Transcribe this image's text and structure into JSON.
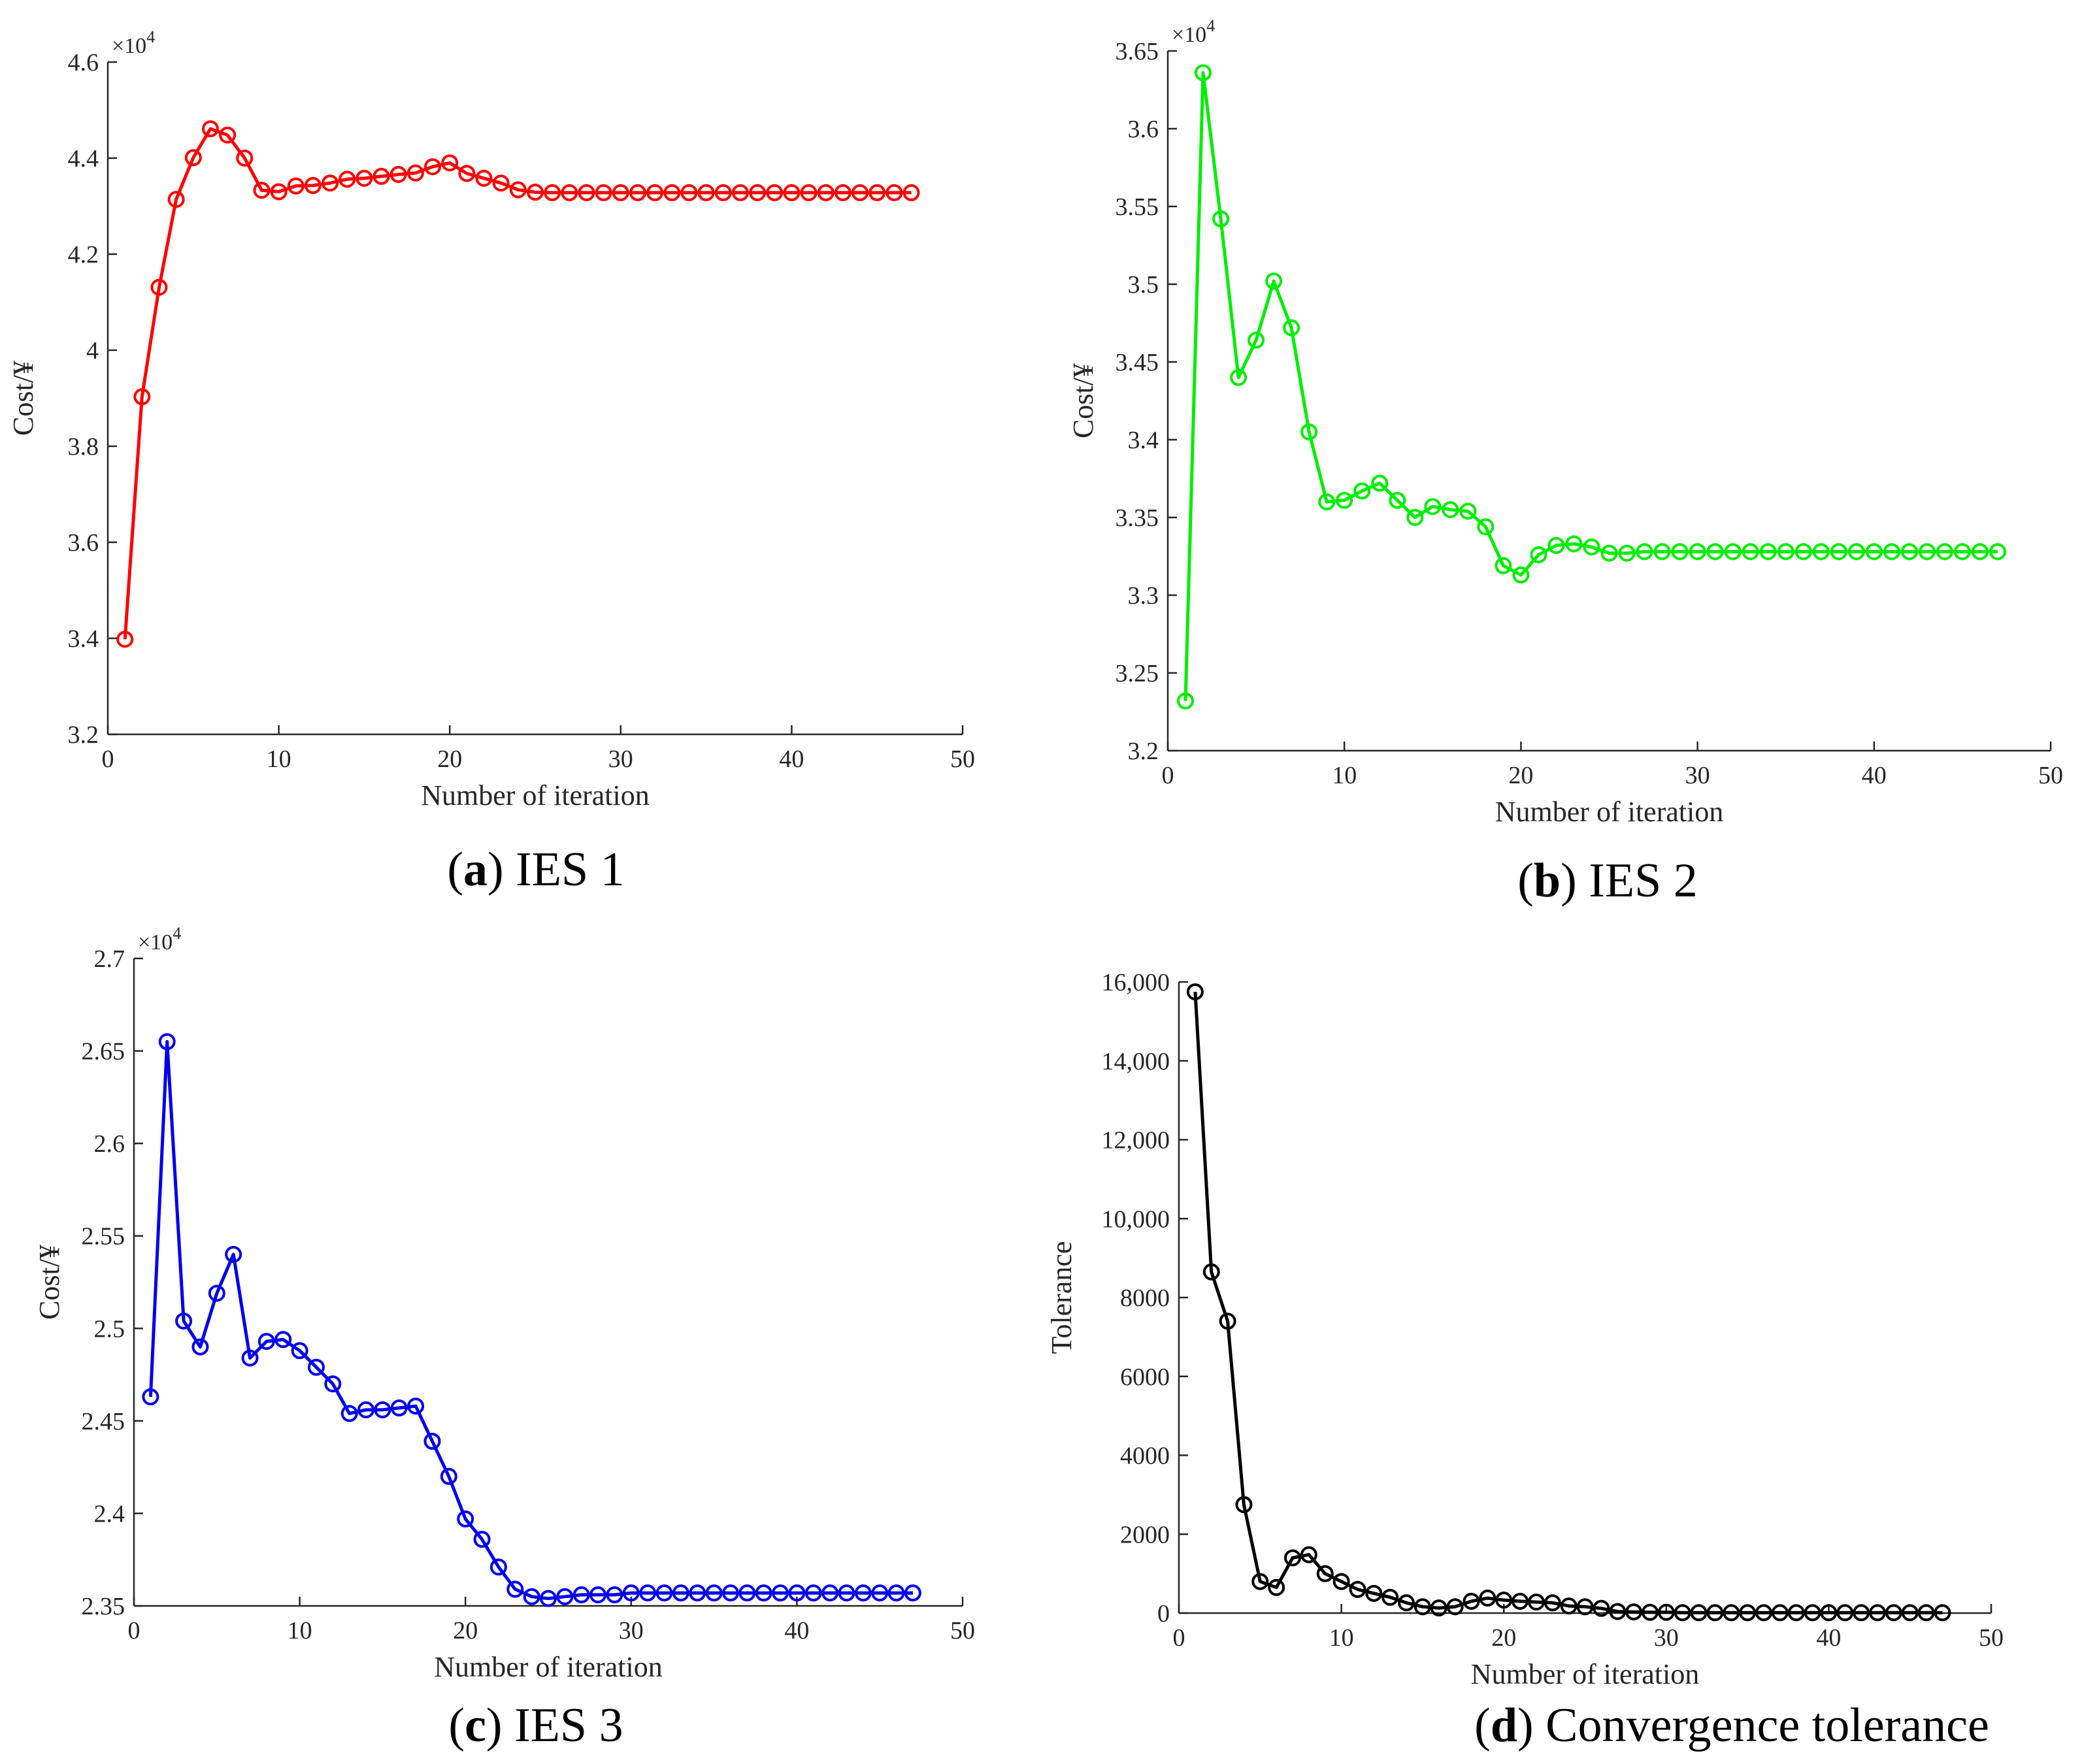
{
  "chart_data": [
    {
      "type": "line",
      "id": "a",
      "caption_letter": "a",
      "caption_text": "IES 1",
      "xlabel": "Number of iteration",
      "ylabel": "Cost/¥",
      "xlim": [
        0,
        50
      ],
      "ylim": [
        32000,
        46000
      ],
      "xticks": [
        0,
        10,
        20,
        30,
        40,
        50
      ],
      "yticks": [
        32000,
        34000,
        36000,
        38000,
        40000,
        42000,
        44000,
        46000
      ],
      "ytick_labels": [
        "3.2",
        "3.4",
        "3.6",
        "3.8",
        "4",
        "4.2",
        "4.4",
        "4.6"
      ],
      "exponent_base": "×10",
      "exponent_power": "4",
      "grid": false,
      "color": "#ff0000",
      "series": [
        {
          "name": "IES 1",
          "x": [
            1,
            2,
            3,
            4,
            5,
            6,
            7,
            8,
            9,
            10,
            11,
            12,
            13,
            14,
            15,
            16,
            17,
            18,
            19,
            20,
            21,
            22,
            23,
            24,
            25,
            26,
            27,
            28,
            29,
            30,
            31,
            32,
            33,
            34,
            35,
            36,
            37,
            38,
            39,
            40,
            41,
            42,
            43,
            44,
            45,
            46,
            47
          ],
          "values": [
            33980,
            39030,
            41310,
            43140,
            44010,
            44610,
            44480,
            44000,
            43330,
            43300,
            43420,
            43430,
            43480,
            43560,
            43580,
            43620,
            43660,
            43690,
            43820,
            43900,
            43680,
            43580,
            43480,
            43340,
            43290,
            43280,
            43280,
            43280,
            43280,
            43280,
            43280,
            43280,
            43280,
            43280,
            43280,
            43280,
            43280,
            43280,
            43280,
            43280,
            43280,
            43280,
            43280,
            43280,
            43280,
            43280,
            43280
          ]
        }
      ]
    },
    {
      "type": "line",
      "id": "b",
      "caption_letter": "b",
      "caption_text": "IES 2",
      "xlabel": "Number of iteration",
      "ylabel": "Cost/¥",
      "xlim": [
        0,
        50
      ],
      "ylim": [
        32000,
        36500
      ],
      "xticks": [
        0,
        10,
        20,
        30,
        40,
        50
      ],
      "yticks": [
        32000,
        32500,
        33000,
        33500,
        34000,
        34500,
        35000,
        35500,
        36000,
        36500
      ],
      "ytick_labels": [
        "3.2",
        "3.25",
        "3.3",
        "3.35",
        "3.4",
        "3.45",
        "3.5",
        "3.55",
        "3.6",
        "3.65"
      ],
      "exponent_base": "×10",
      "exponent_power": "4",
      "grid": false,
      "color": "#00ee00",
      "series": [
        {
          "name": "IES 2",
          "x": [
            1,
            2,
            3,
            4,
            5,
            6,
            7,
            8,
            9,
            10,
            11,
            12,
            13,
            14,
            15,
            16,
            17,
            18,
            19,
            20,
            21,
            22,
            23,
            24,
            25,
            26,
            27,
            28,
            29,
            30,
            31,
            32,
            33,
            34,
            35,
            36,
            37,
            38,
            39,
            40,
            41,
            42,
            43,
            44,
            45,
            46,
            47
          ],
          "values": [
            32320,
            36360,
            35420,
            34400,
            34640,
            35020,
            34720,
            34050,
            33600,
            33610,
            33670,
            33720,
            33610,
            33500,
            33570,
            33550,
            33540,
            33440,
            33190,
            33130,
            33260,
            33320,
            33330,
            33310,
            33270,
            33270,
            33280,
            33280,
            33280,
            33280,
            33280,
            33280,
            33280,
            33280,
            33280,
            33280,
            33280,
            33280,
            33280,
            33280,
            33280,
            33280,
            33280,
            33280,
            33280,
            33280,
            33280
          ]
        }
      ]
    },
    {
      "type": "line",
      "id": "c",
      "caption_letter": "c",
      "caption_text": "IES 3",
      "xlabel": "Number of iteration",
      "ylabel": "Cost/¥",
      "xlim": [
        0,
        50
      ],
      "ylim": [
        23500,
        27000
      ],
      "xticks": [
        0,
        10,
        20,
        30,
        40,
        50
      ],
      "yticks": [
        23500,
        24000,
        24500,
        25000,
        25500,
        26000,
        26500,
        27000
      ],
      "ytick_labels": [
        "2.35",
        "2.4",
        "2.45",
        "2.5",
        "2.55",
        "2.6",
        "2.65",
        "2.7"
      ],
      "exponent_base": "×10",
      "exponent_power": "4",
      "grid": false,
      "color": "#0000ee",
      "series": [
        {
          "name": "IES 3",
          "x": [
            1,
            2,
            3,
            4,
            5,
            6,
            7,
            8,
            9,
            10,
            11,
            12,
            13,
            14,
            15,
            16,
            17,
            18,
            19,
            20,
            21,
            22,
            23,
            24,
            25,
            26,
            27,
            28,
            29,
            30,
            31,
            32,
            33,
            34,
            35,
            36,
            37,
            38,
            39,
            40,
            41,
            42,
            43,
            44,
            45,
            46,
            47
          ],
          "values": [
            24630,
            26550,
            25040,
            24900,
            25190,
            25400,
            24840,
            24930,
            24940,
            24880,
            24790,
            24700,
            24540,
            24560,
            24560,
            24570,
            24580,
            24390,
            24200,
            23970,
            23860,
            23710,
            23590,
            23550,
            23540,
            23550,
            23560,
            23560,
            23560,
            23570,
            23570,
            23570,
            23570,
            23570,
            23570,
            23570,
            23570,
            23570,
            23570,
            23570,
            23570,
            23570,
            23570,
            23570,
            23570,
            23570,
            23570
          ]
        }
      ]
    },
    {
      "type": "line",
      "id": "d",
      "caption_letter": "d",
      "caption_text": "Convergence tolerance",
      "xlabel": "Number of iteration",
      "ylabel": "Tolerance",
      "xlim": [
        0,
        50
      ],
      "ylim": [
        0,
        16000
      ],
      "xticks": [
        0,
        10,
        20,
        30,
        40,
        50
      ],
      "yticks": [
        0,
        2000,
        4000,
        6000,
        8000,
        10000,
        12000,
        14000,
        16000
      ],
      "ytick_labels": [
        "0",
        "2000",
        "4000",
        "6000",
        "8000",
        "10,000",
        "12,000",
        "14,000",
        "16,000"
      ],
      "exponent_base": "",
      "exponent_power": "",
      "grid": false,
      "color": "#000000",
      "series": [
        {
          "name": "Tolerance",
          "x": [
            1,
            2,
            3,
            4,
            5,
            6,
            7,
            8,
            9,
            10,
            11,
            12,
            13,
            14,
            15,
            16,
            17,
            18,
            19,
            20,
            21,
            22,
            23,
            24,
            25,
            26,
            27,
            28,
            29,
            30,
            31,
            32,
            33,
            34,
            35,
            36,
            37,
            38,
            39,
            40,
            41,
            42,
            43,
            44,
            45,
            46,
            47
          ],
          "values": [
            15750,
            8650,
            7400,
            2750,
            800,
            650,
            1400,
            1480,
            1000,
            800,
            600,
            500,
            400,
            260,
            160,
            130,
            160,
            300,
            380,
            330,
            300,
            280,
            260,
            180,
            160,
            120,
            40,
            30,
            20,
            20,
            10,
            10,
            10,
            10,
            10,
            10,
            10,
            10,
            10,
            10,
            10,
            10,
            10,
            10,
            10,
            10,
            10
          ]
        }
      ]
    }
  ]
}
